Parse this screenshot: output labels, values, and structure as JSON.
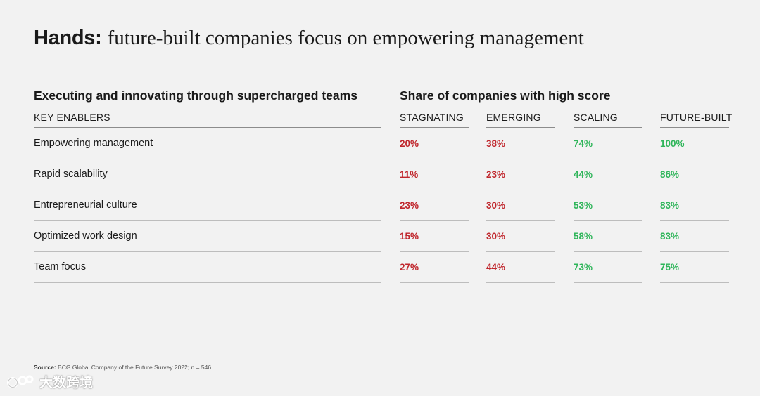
{
  "title": {
    "lead": "Hands:",
    "rest": "future-built companies focus on empowering management"
  },
  "left_heading": "Executing and innovating through supercharged teams",
  "right_heading": "Share of companies with high score",
  "chart_data": {
    "type": "table",
    "row_header": "KEY ENABLERS",
    "columns": [
      "STAGNATING",
      "EMERGING",
      "SCALING",
      "FUTURE-BUILT"
    ],
    "rows": [
      {
        "label": "Empowering management",
        "values": [
          "20%",
          "38%",
          "74%",
          "100%"
        ]
      },
      {
        "label": "Rapid scalability",
        "values": [
          "11%",
          "23%",
          "44%",
          "86%"
        ]
      },
      {
        "label": "Entrepreneurial culture",
        "values": [
          "23%",
          "30%",
          "53%",
          "83%"
        ]
      },
      {
        "label": "Optimized work design",
        "values": [
          "15%",
          "30%",
          "58%",
          "83%"
        ]
      },
      {
        "label": "Team focus",
        "values": [
          "27%",
          "44%",
          "73%",
          "75%"
        ]
      }
    ],
    "column_colors": [
      "#c0272d",
      "#c0272d",
      "#2fb55a",
      "#2fb55a"
    ]
  },
  "source": {
    "label": "Source:",
    "text": "BCG Global Company of the Future Survey 2022; n = 546."
  },
  "watermark": {
    "text": "大数跨境"
  }
}
